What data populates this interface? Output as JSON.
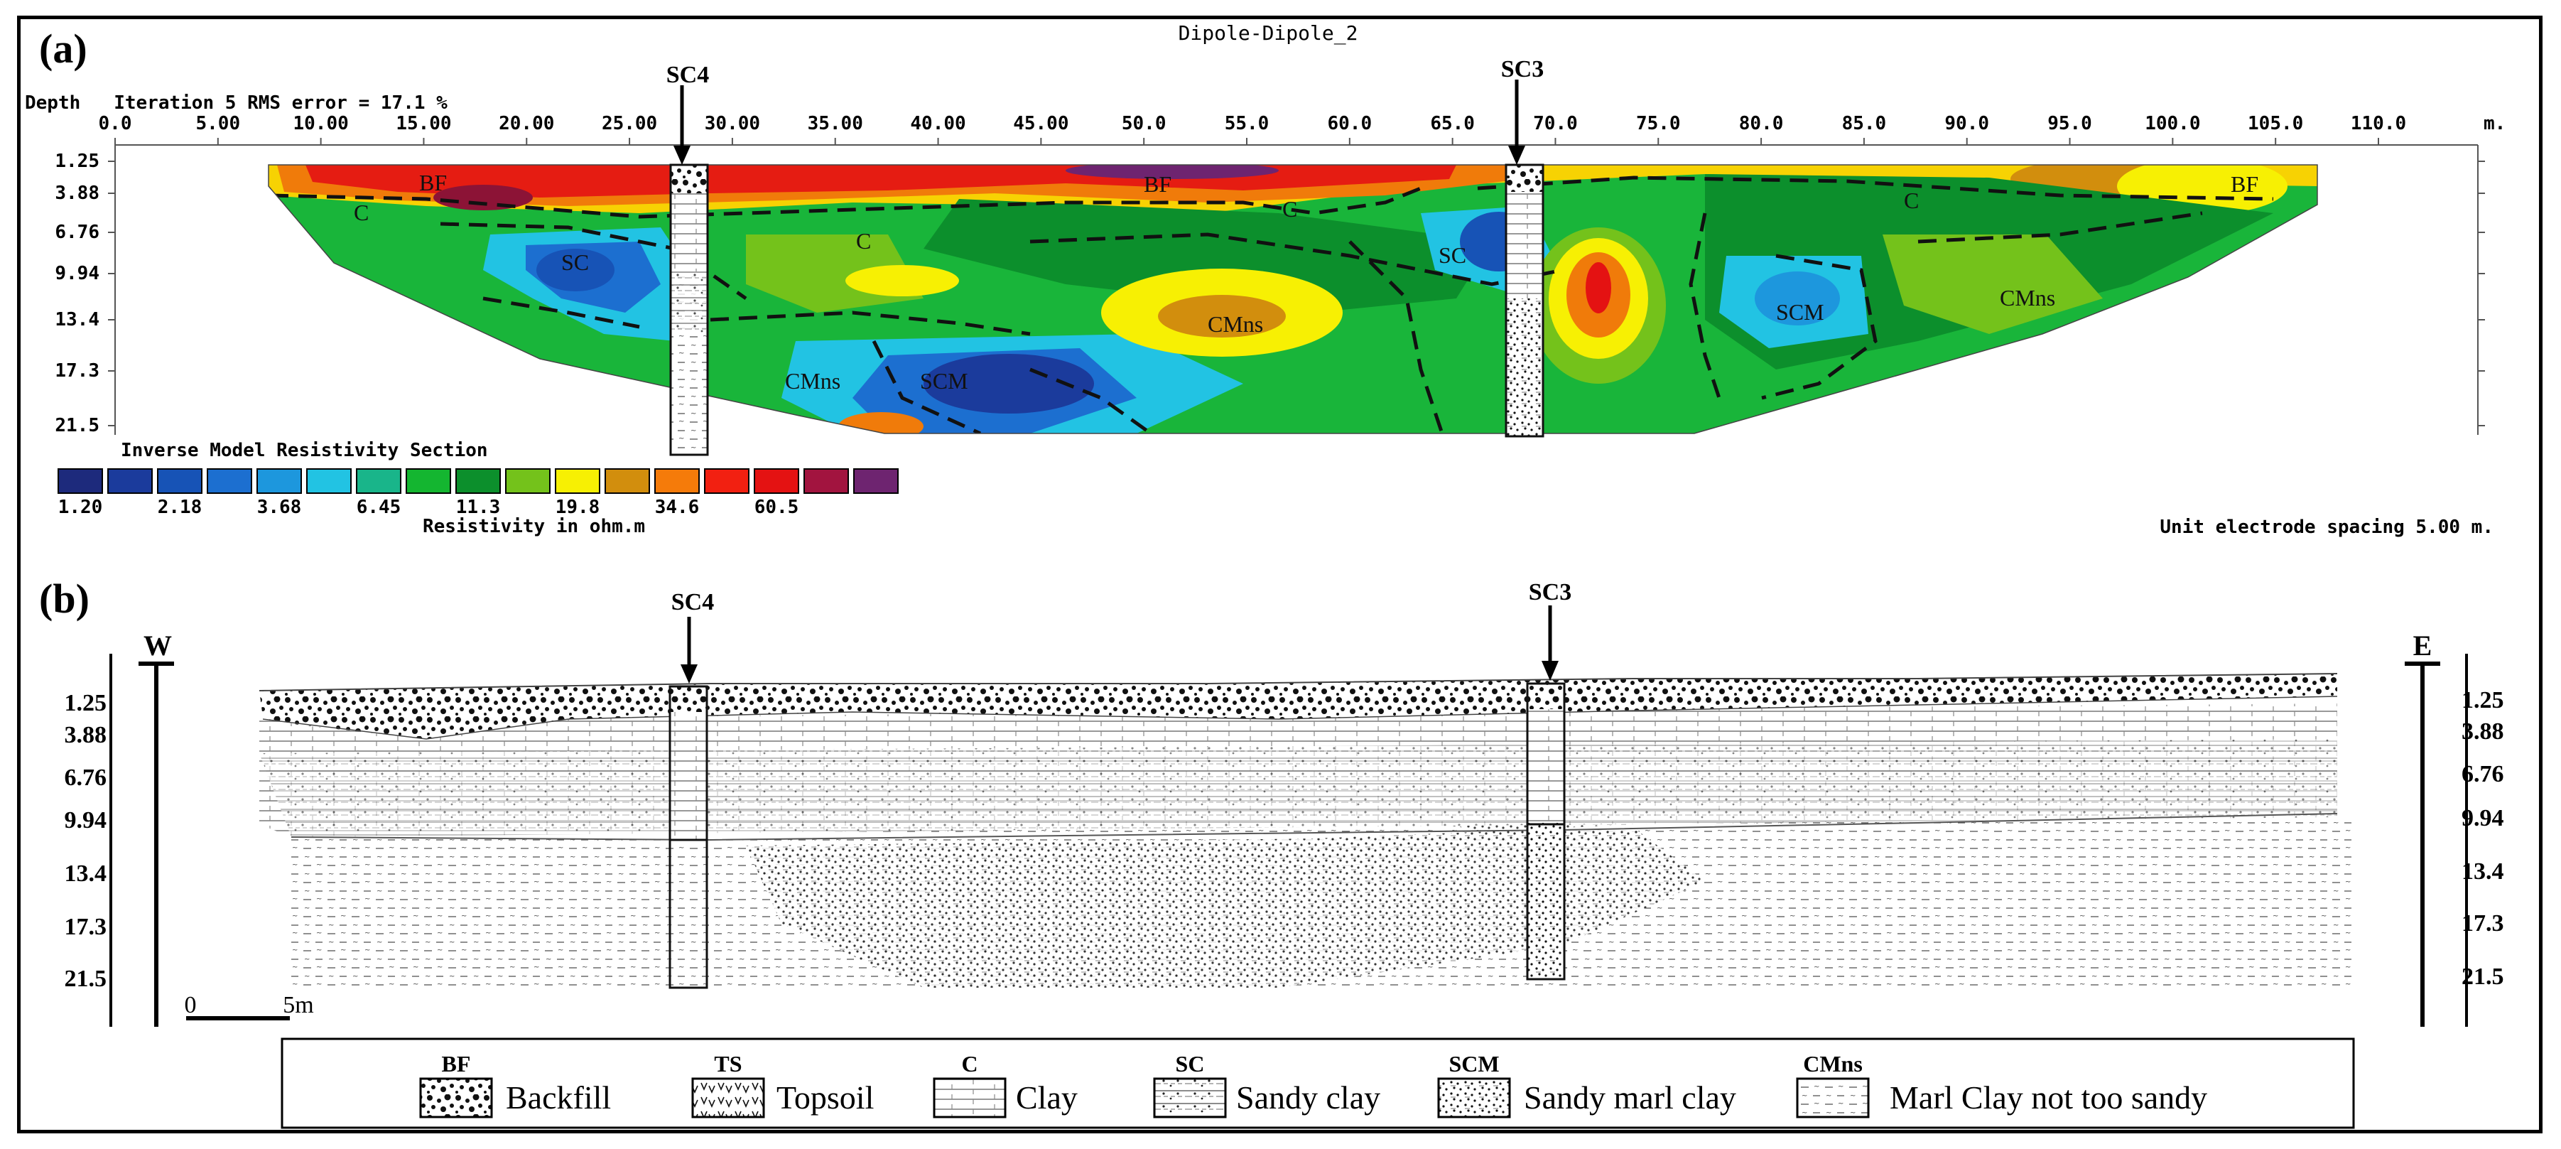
{
  "panel_a": {
    "label": "(a)",
    "title": "Dipole-Dipole_2",
    "header": "Depth   Iteration 5 RMS error = 17.1 %",
    "x_ticks": [
      "0.0",
      "5.00",
      "10.00",
      "15.00",
      "20.00",
      "25.00",
      "30.00",
      "35.00",
      "40.00",
      "45.00",
      "50.0",
      "55.0",
      "60.0",
      "65.0",
      "70.0",
      "75.0",
      "80.0",
      "85.0",
      "90.0",
      "95.0",
      "100.0",
      "105.0",
      "110.0"
    ],
    "x_unit": "m.",
    "depth_ticks": [
      "1.25",
      "3.88",
      "6.76",
      "9.94",
      "13.4",
      "17.3",
      "21.5"
    ],
    "boreholes": [
      "SC4",
      "SC3"
    ],
    "zone_labels": [
      "BF",
      "BF",
      "BF",
      "C",
      "C",
      "C",
      "C",
      "SC",
      "SC",
      "SCM",
      "SCM",
      "CMns",
      "CMns",
      "CMns"
    ],
    "legend_title": "Inverse Model Resistivity Section",
    "legend_values": [
      "1.20",
      "2.18",
      "3.68",
      "6.45",
      "11.3",
      "19.8",
      "34.6",
      "60.5"
    ],
    "legend_unit": "Resistivity in ohm.m",
    "legend_colors": [
      "#1d2a7c",
      "#1b3b9c",
      "#1753b6",
      "#1c6fd0",
      "#1d97dd",
      "#22c3e3",
      "#19b58a",
      "#14b630",
      "#0c8f2c",
      "#74c21b",
      "#f7f003",
      "#d28e0d",
      "#f57b0a",
      "#f22011",
      "#e41212",
      "#a2143f",
      "#6e2470"
    ],
    "spacing_note": "Unit electrode spacing 5.00 m."
  },
  "panel_b": {
    "label": "(b)",
    "west": "W",
    "east": "E",
    "boreholes": [
      "SC4",
      "SC3"
    ],
    "depth_ticks": [
      "1.25",
      "3.88",
      "6.76",
      "9.94",
      "13.4",
      "17.3",
      "21.5"
    ],
    "scale_start": "0",
    "scale_end": "5m"
  },
  "legend": [
    {
      "code": "BF",
      "label": "Backfill"
    },
    {
      "code": "TS",
      "label": "Topsoil"
    },
    {
      "code": "C",
      "label": "Clay"
    },
    {
      "code": "SC",
      "label": "Sandy clay"
    },
    {
      "code": "SCM",
      "label": "Sandy marl clay"
    },
    {
      "code": "CMns",
      "label": "Marl Clay not too sandy"
    }
  ]
}
